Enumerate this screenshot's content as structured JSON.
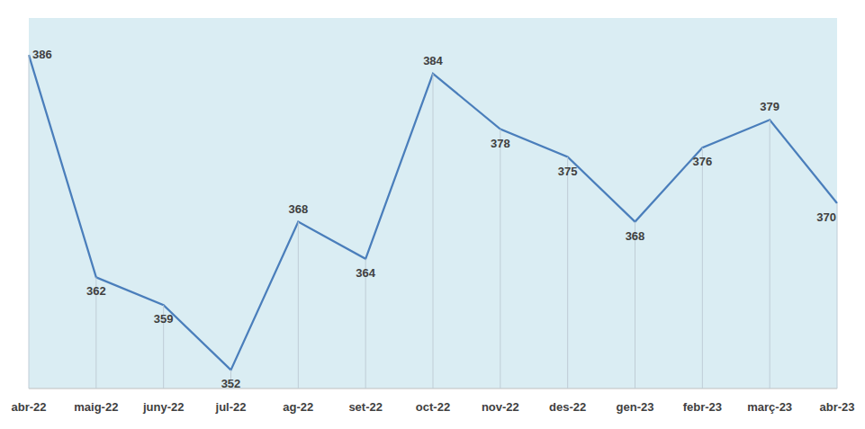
{
  "chart_data": {
    "type": "line",
    "categories": [
      "abr-22",
      "maig-22",
      "juny-22",
      "jul-22",
      "ag-22",
      "set-22",
      "oct-22",
      "nov-22",
      "des-22",
      "gen-23",
      "febr-23",
      "març-23",
      "abr-23"
    ],
    "values": [
      386,
      362,
      359,
      352,
      368,
      364,
      384,
      378,
      375,
      368,
      376,
      379,
      370
    ],
    "color": "#4a7ebb",
    "ylim": [
      350,
      390
    ],
    "data_labels": true,
    "tick_labels": "x",
    "grid": false
  }
}
